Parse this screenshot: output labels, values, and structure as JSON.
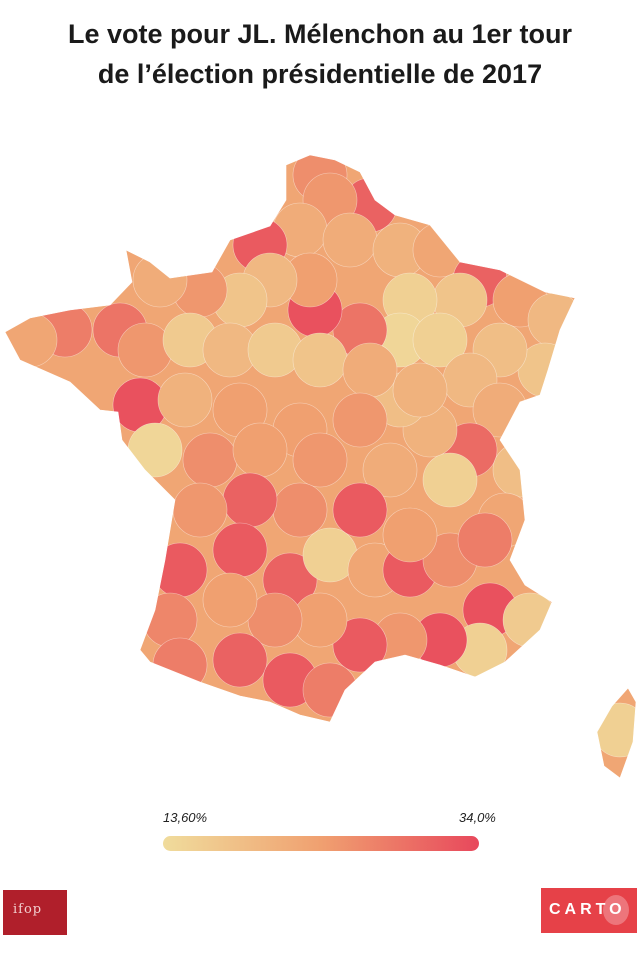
{
  "title": {
    "line1": "Le vote pour JL. Mélenchon au 1er tour",
    "line2": "de l’élection présidentielle de 2017"
  },
  "legend": {
    "min_label": "13,60%",
    "max_label": "34,0%",
    "min_color": "#f0dc9c",
    "max_color": "#e8485c"
  },
  "logos": {
    "left": "ifop",
    "right": "CARTO"
  }
}
